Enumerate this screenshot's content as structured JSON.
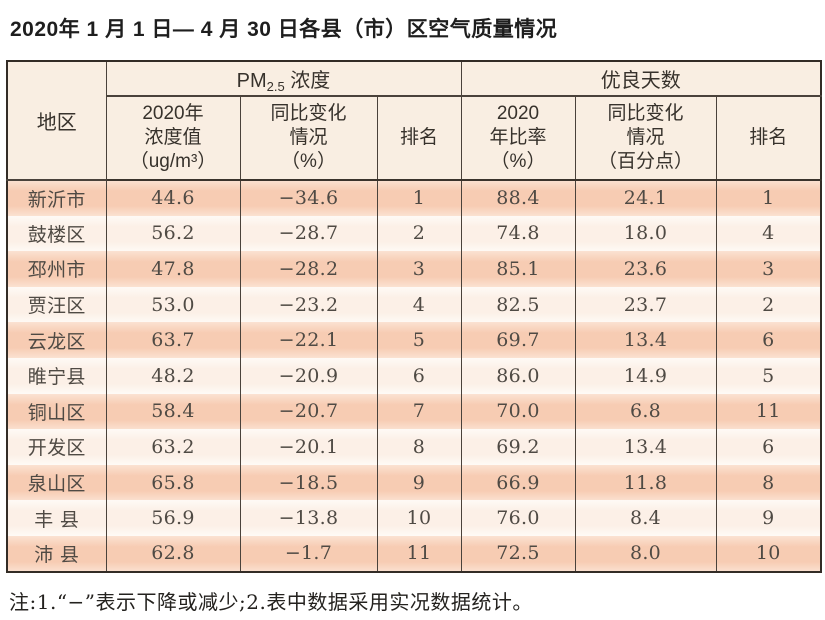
{
  "title": "2020年 1 月 1 日— 4 月 30 日各县（市）区空气质量情况",
  "table": {
    "columns": {
      "region": "地区",
      "pm_group_prefix": "PM",
      "pm_group_sub": "2.5",
      "pm_group_suffix": " 浓度",
      "pm_value": "2020年\n浓度值\n（ug/m³）",
      "pm_change": "同比变化\n情况\n（%）",
      "pm_rank": "排名",
      "good_group": "优良天数",
      "good_ratio": "2020\n年比率\n（%）",
      "good_change": "同比变化\n情况\n（百分点）",
      "good_rank": "排名"
    },
    "rows": [
      [
        "新沂市",
        "44.6",
        "−34.6",
        "1",
        "88.4",
        "24.1",
        "1"
      ],
      [
        "鼓楼区",
        "56.2",
        "−28.7",
        "2",
        "74.8",
        "18.0",
        "4"
      ],
      [
        "邳州市",
        "47.8",
        "−28.2",
        "3",
        "85.1",
        "23.6",
        "3"
      ],
      [
        "贾汪区",
        "53.0",
        "−23.2",
        "4",
        "82.5",
        "23.7",
        "2"
      ],
      [
        "云龙区",
        "63.7",
        "−22.1",
        "5",
        "69.7",
        "13.4",
        "6"
      ],
      [
        "睢宁县",
        "48.2",
        "−20.9",
        "6",
        "86.0",
        "14.9",
        "5"
      ],
      [
        "铜山区",
        "58.4",
        "−20.7",
        "7",
        "70.0",
        "6.8",
        "11"
      ],
      [
        "开发区",
        "63.2",
        "−20.1",
        "8",
        "69.2",
        "13.4",
        "6"
      ],
      [
        "泉山区",
        "65.8",
        "−18.5",
        "9",
        "66.9",
        "11.8",
        "8"
      ],
      [
        "丰 县",
        "56.9",
        "−13.8",
        "10",
        "76.0",
        "8.4",
        "9"
      ],
      [
        "沛 县",
        "62.8",
        "−1.7",
        "11",
        "72.5",
        "8.0",
        "10"
      ]
    ]
  },
  "note": "注:1.“−”表示下降或减少;2.表中数据采用实况数据统计。",
  "colors": {
    "stripe_dark": "#f7ccb3",
    "stripe_light": "#fcf0e7",
    "header_bg": "#f9eee2",
    "border_dark": "#332c26",
    "border_inner": "#4a423b"
  }
}
